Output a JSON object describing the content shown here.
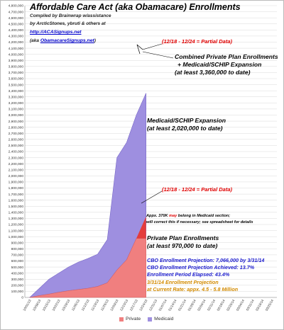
{
  "chart_data": {
    "type": "area",
    "stacked": true,
    "title": "Affordable Care Act (aka Obamacare) Enrollments",
    "x": [
      "10/01/13",
      "10/08/13",
      "10/15/13",
      "10/22/13",
      "10/29/13",
      "11/05/13",
      "11/12/13",
      "11/19/13",
      "11/26/13",
      "12/03/13",
      "12/10/13",
      "12/17/13",
      "12/24/13",
      "12/31/13",
      "01/07/14",
      "01/14/14",
      "01/21/14",
      "01/28/14",
      "02/04/14",
      "02/11/14",
      "02/18/14",
      "02/25/14",
      "03/04/14",
      "03/11/14",
      "03/18/14",
      "03/25/14"
    ],
    "ylim": [
      0,
      4800000
    ],
    "yticks": [
      "0",
      "100,000",
      "200,000",
      "300,000",
      "400,000",
      "500,000",
      "600,000",
      "700,000",
      "800,000",
      "900,000",
      "1,000,000",
      "1,100,000",
      "1,200,000",
      "1,300,000",
      "1,400,000",
      "1,500,000",
      "1,600,000",
      "1,700,000",
      "1,800,000",
      "1,900,000",
      "2,000,000",
      "2,100,000",
      "2,200,000",
      "2,300,000",
      "2,400,000",
      "2,500,000",
      "2,600,000",
      "2,700,000",
      "2,800,000",
      "2,900,000",
      "3,000,000",
      "3,100,000",
      "3,200,000",
      "3,300,000",
      "3,400,000",
      "3,500,000",
      "3,600,000",
      "3,700,000",
      "3,800,000",
      "3,900,000",
      "4,000,000",
      "4,100,000",
      "4,200,000",
      "4,300,000",
      "4,400,000",
      "4,500,000",
      "4,600,000",
      "4,700,000",
      "4,800,000"
    ],
    "series": [
      {
        "name": "Private",
        "color": "#f07f7f",
        "points": [
          [
            0,
            0
          ],
          [
            1,
            30000
          ],
          [
            2,
            55000
          ],
          [
            3,
            85000
          ],
          [
            4,
            110000
          ],
          [
            5,
            130000
          ],
          [
            6,
            150000
          ],
          [
            7,
            180000
          ],
          [
            8,
            240000
          ],
          [
            9,
            450000
          ],
          [
            10,
            620000
          ],
          [
            11,
            970000
          ],
          [
            12,
            970000
          ]
        ],
        "partial_points": [
          [
            11,
            970000
          ],
          [
            12,
            1330000
          ]
        ]
      },
      {
        "name": "Medicaid",
        "color": "#9e8fe0",
        "points": [
          [
            0,
            0
          ],
          [
            1,
            150000
          ],
          [
            2,
            300000
          ],
          [
            3,
            400000
          ],
          [
            4,
            500000
          ],
          [
            5,
            580000
          ],
          [
            6,
            640000
          ],
          [
            7,
            710000
          ],
          [
            8,
            950000
          ],
          [
            9,
            2300000
          ],
          [
            10,
            2550000
          ],
          [
            11,
            3000000
          ],
          [
            12,
            3360000
          ]
        ]
      }
    ],
    "legend": "bottom",
    "grid": true
  },
  "annotations": {
    "credits": [
      "Compiled by Brainwrap w/assistance",
      "by ArcticStones, ybruti & others at"
    ],
    "site_link": "http://ACASignups.net",
    "aka_prefix": "(aka ",
    "aka_link": "ObamacareSignups.net",
    "aka_suffix": ")",
    "partial_top": "(12/18 - 12/24 = Partial Data)",
    "combined": [
      "Combined Private Plan Enrollments",
      "+ Medicaid/SCHIP Expansion",
      "(at least 3,360,000 to date)"
    ],
    "medicaid": [
      "Medicaid/SCHIP Expansion",
      "(at least 2,020,000 to date)"
    ],
    "partial_mid": "(12/18 - 12/24 = Partial Data)",
    "note_a": "Appx. 370K ",
    "note_may": "may",
    "note_b": " belong in Medicaid section;",
    "note_line2": "will correct this if necessary; see spreadsheet for details",
    "private": [
      "Private Plan Enrollments",
      "(at least 970,000 to date)"
    ],
    "cbo": [
      "CBO Enrollment Projection: 7,066,000 by 3/31/14",
      "CBO Enrollment Projection Achieved: 13.7%",
      "Enrollment Period Elapsed: 43.4%"
    ],
    "projection": [
      "3/31/14 Enrollment Projection",
      "at Current Rate: appx. 4.5 - 5.8 Million"
    ]
  },
  "legend_labels": {
    "private": "Private",
    "medicaid": "Medicaid"
  }
}
